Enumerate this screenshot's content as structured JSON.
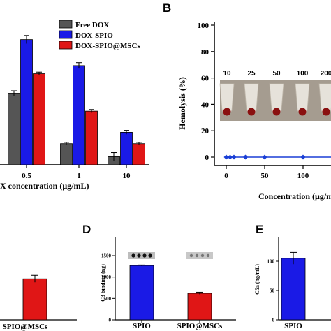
{
  "panels": {
    "B": "B",
    "D": "D",
    "E": "E"
  },
  "colors": {
    "free_dox": "#555555",
    "dox_spio": "#1a1ae6",
    "dox_spio_mscs": "#e01616",
    "blue_series": "#1a3fd6"
  },
  "chart_data": [
    {
      "id": "A",
      "type": "bar",
      "xlabel": "DOX concentration (μg/mL)",
      "ylabel": "",
      "categories": [
        "0.5",
        "1",
        "10"
      ],
      "ylim": [
        0,
        85
      ],
      "series": [
        {
          "name": "Free DOX",
          "values": [
            44,
            13,
            5
          ],
          "errors": [
            1.5,
            0.8,
            2.5
          ]
        },
        {
          "name": "DOX-SPIO",
          "values": [
            77,
            61,
            20
          ],
          "errors": [
            2.5,
            1.8,
            1.2
          ]
        },
        {
          "name": "DOX-SPIO@MSCs",
          "values": [
            56,
            33,
            13
          ],
          "errors": [
            1.0,
            1.0,
            0.8
          ]
        }
      ],
      "legend_position": "top-right"
    },
    {
      "id": "B",
      "type": "line",
      "title": "B",
      "xlabel": "Concentration (μg/mL)",
      "ylabel": "Hemolysis (%)",
      "x": [
        0,
        5,
        10,
        25,
        50,
        100,
        200
      ],
      "y": [
        0,
        0,
        0,
        0,
        0,
        0,
        0
      ],
      "ylim": [
        0,
        100
      ],
      "yticks": [
        "0",
        "20",
        "40",
        "60",
        "80",
        "100"
      ],
      "xticks": [
        "0",
        "50",
        "100"
      ],
      "inset_concentrations": [
        "10",
        "25",
        "50",
        "100",
        "200"
      ]
    },
    {
      "id": "C",
      "type": "bar",
      "categories": [
        "SPIO@MSCs"
      ],
      "values": [
        47
      ],
      "errors": [
        4
      ]
    },
    {
      "id": "D",
      "type": "bar",
      "title": "D",
      "ylabel": "C3 binding (ng)",
      "categories": [
        "SPIO",
        "SPIO@MSCs"
      ],
      "values": [
        1270,
        620
      ],
      "errors": [
        12,
        25
      ],
      "ylim": [
        0,
        1700
      ],
      "yticks": [
        "0",
        "500",
        "1000",
        "1500"
      ]
    },
    {
      "id": "E",
      "type": "bar",
      "title": "E",
      "ylabel": "C5a (ng/mL)",
      "categories": [
        "SPIO"
      ],
      "values": [
        105
      ],
      "errors": [
        10
      ],
      "ylim": [
        0,
        150
      ],
      "yticks": [
        "0",
        "50",
        "100"
      ]
    }
  ]
}
